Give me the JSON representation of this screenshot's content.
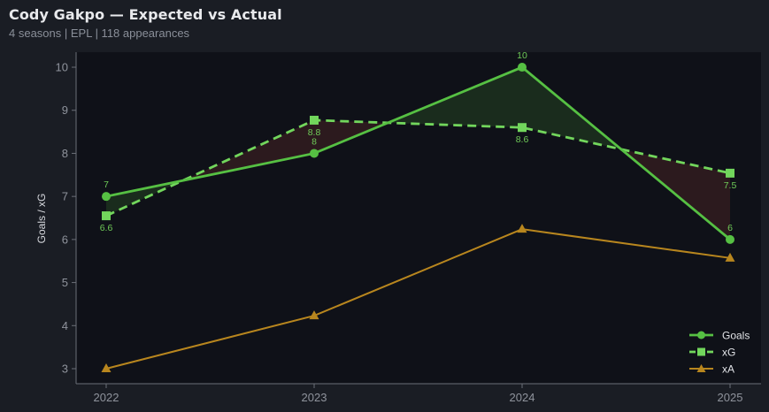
{
  "header": {
    "title": "Cody Gakpo — Expected vs Actual",
    "subtitle": "4 seasons | EPL | 118 appearances"
  },
  "colors": {
    "background": "#1a1d24",
    "plot_background": "#0f1118",
    "goals": "#56c043",
    "xg": "#72d65c",
    "xa": "#b8861e",
    "overperform_fill": "#1b2e1e",
    "underperform_fill": "#2e1b1f",
    "axis": "#6b6f78"
  },
  "chart_data": {
    "type": "line",
    "title": "Cody Gakpo — Expected vs Actual",
    "subtitle": "4 seasons | EPL | 118 appearances",
    "xlabel": "",
    "ylabel": "Goals / xG",
    "categories": [
      "2022",
      "2023",
      "2024",
      "2025"
    ],
    "x": [
      2022,
      2023,
      2024,
      2025
    ],
    "ylim": [
      2.7,
      10.35
    ],
    "yticks": [
      3,
      4,
      5,
      6,
      7,
      8,
      9,
      10
    ],
    "grid": false,
    "legend_position": "lower right",
    "series": [
      {
        "name": "Goals",
        "values": [
          7,
          8,
          10,
          6
        ],
        "labels": [
          "7",
          "8",
          "10",
          "6"
        ],
        "style": "solid",
        "marker": "circle"
      },
      {
        "name": "xG",
        "values": [
          6.55,
          8.77,
          8.6,
          7.54
        ],
        "labels": [
          "6.6",
          "8.8",
          "8.6",
          "7.5"
        ],
        "style": "dashed",
        "marker": "square"
      },
      {
        "name": "xA",
        "values": [
          3.0,
          4.23,
          6.24,
          5.57
        ],
        "style": "solid",
        "marker": "triangle"
      }
    ],
    "annotations": "Green shading where Goals > xG, red shading where Goals < xG"
  },
  "legend": {
    "items": [
      {
        "label": "Goals"
      },
      {
        "label": "xG"
      },
      {
        "label": "xA"
      }
    ]
  }
}
